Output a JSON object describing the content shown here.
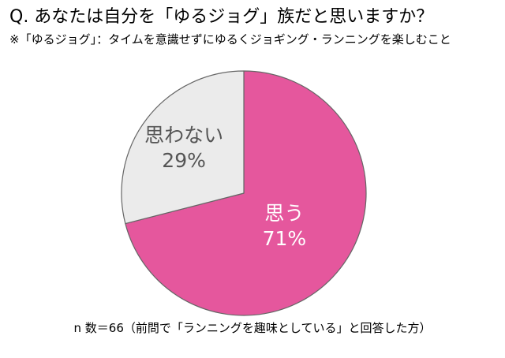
{
  "header": {
    "title": "Q. あなたは自分を「ゆるジョグ」族だと思いますか？",
    "subtitle": "※「ゆるジョグ」：タイムを意識せずにゆるくジョギング・ランニングを楽しむこと"
  },
  "footer": {
    "note": "n 数＝66（前問で「ランニングを趣味としている」と回答した方）"
  },
  "chart_data": {
    "type": "pie",
    "title": "Q. あなたは自分を「ゆるジョグ」族だと思いますか？",
    "slices": [
      {
        "label": "思う",
        "value": 71,
        "value_label": "71%",
        "color": "#e5579d",
        "text_color": "#ffffff"
      },
      {
        "label": "思わない",
        "value": 29,
        "value_label": "29%",
        "color": "#ebebeb",
        "text_color": "#555555"
      }
    ],
    "start": "12 o'clock, clockwise",
    "legend": "none (labels inside slices)"
  }
}
